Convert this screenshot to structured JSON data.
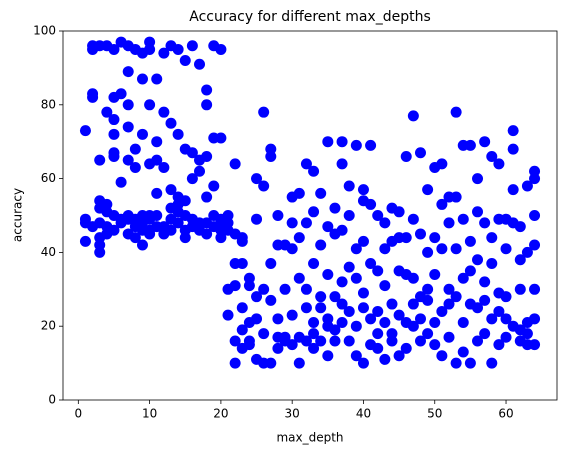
{
  "chart_data": {
    "type": "scatter",
    "title": "Accuracy for different max_depths",
    "x_label": "max_depth",
    "y_label": "accuracy",
    "color": "#0000ff",
    "xlim": [
      -2.15,
      67.15
    ],
    "ylim": [
      0,
      100
    ],
    "xticks": [
      0,
      10,
      20,
      30,
      40,
      50,
      60
    ],
    "yticks": [
      0,
      20,
      40,
      60,
      80,
      100
    ],
    "x": [
      1,
      1,
      1,
      1,
      2,
      2,
      2,
      2,
      2,
      3,
      3,
      3,
      3,
      3,
      3,
      3,
      3,
      4,
      4,
      4,
      4,
      4,
      4,
      5,
      5,
      5,
      5,
      5,
      5,
      5,
      5,
      6,
      6,
      6,
      6,
      6,
      7,
      7,
      7,
      7,
      7,
      7,
      7,
      7,
      8,
      8,
      8,
      8,
      8,
      8,
      9,
      9,
      9,
      9,
      9,
      9,
      9,
      10,
      10,
      10,
      10,
      10,
      10,
      10,
      10,
      11,
      11,
      11,
      11,
      11,
      11,
      12,
      12,
      12,
      12,
      12,
      13,
      13,
      13,
      13,
      13,
      13,
      14,
      14,
      14,
      14,
      14,
      14,
      15,
      15,
      15,
      15,
      15,
      15,
      16,
      16,
      16,
      16,
      16,
      17,
      17,
      17,
      17,
      17,
      18,
      18,
      18,
      18,
      18,
      18,
      19,
      19,
      19,
      19,
      19,
      20,
      20,
      20,
      20,
      20,
      20,
      21,
      21,
      21,
      21,
      21,
      22,
      22,
      22,
      22,
      22,
      22,
      23,
      23,
      23,
      23,
      23,
      23,
      24,
      24,
      24,
      24,
      24,
      25,
      25,
      25,
      25,
      25,
      26,
      26,
      26,
      26,
      26,
      27,
      27,
      27,
      27,
      27,
      28,
      28,
      28,
      28,
      28,
      29,
      29,
      29,
      29,
      30,
      30,
      30,
      30,
      30,
      31,
      31,
      31,
      31,
      31,
      32,
      32,
      32,
      32,
      32,
      33,
      33,
      33,
      33,
      33,
      33,
      34,
      34,
      34,
      34,
      34,
      35,
      35,
      35,
      35,
      35,
      35,
      36,
      36,
      36,
      36,
      36,
      37,
      37,
      37,
      37,
      37,
      37,
      38,
      38,
      38,
      38,
      38,
      39,
      39,
      39,
      39,
      39,
      40,
      40,
      40,
      40,
      40,
      40,
      41,
      41,
      41,
      41,
      41,
      42,
      42,
      42,
      42,
      42,
      43,
      43,
      43,
      43,
      43,
      44,
      44,
      44,
      44,
      44,
      45,
      45,
      45,
      45,
      45,
      46,
      46,
      46,
      46,
      46,
      47,
      47,
      47,
      47,
      47,
      48,
      48,
      48,
      48,
      48,
      49,
      49,
      49,
      49,
      49,
      50,
      50,
      50,
      50,
      50,
      51,
      51,
      51,
      51,
      51,
      52,
      52,
      52,
      52,
      52,
      53,
      53,
      53,
      53,
      53,
      54,
      54,
      54,
      54,
      54,
      55,
      55,
      55,
      55,
      55,
      56,
      56,
      56,
      56,
      56,
      57,
      57,
      57,
      57,
      57,
      58,
      58,
      58,
      58,
      58,
      59,
      59,
      59,
      59,
      59,
      60,
      60,
      60,
      60,
      60,
      61,
      61,
      61,
      61,
      61,
      62,
      62,
      62,
      62,
      62,
      63,
      63,
      63,
      63,
      63,
      64,
      64,
      64,
      64,
      64,
      64,
      64
    ],
    "values": [
      73,
      49,
      48,
      43,
      95,
      83,
      82,
      96,
      47,
      96,
      65,
      54,
      52,
      48,
      44,
      42,
      40,
      96,
      78,
      51,
      53,
      47,
      45,
      95,
      82,
      76,
      67,
      66,
      72,
      50,
      46,
      97,
      83,
      59,
      49,
      48,
      96,
      89,
      80,
      74,
      65,
      50,
      49,
      45,
      95,
      68,
      63,
      49,
      47,
      44,
      94,
      87,
      72,
      50,
      48,
      46,
      42,
      97,
      95,
      80,
      64,
      50,
      49,
      46,
      45,
      87,
      70,
      65,
      56,
      50,
      47,
      94,
      78,
      63,
      47,
      45,
      96,
      75,
      57,
      52,
      49,
      46,
      95,
      72,
      55,
      53,
      51,
      48,
      92,
      68,
      54,
      50,
      46,
      44,
      96,
      67,
      60,
      49,
      47,
      91,
      65,
      62,
      48,
      46,
      84,
      80,
      66,
      55,
      48,
      45,
      96,
      71,
      58,
      50,
      47,
      95,
      71,
      49,
      48,
      46,
      44,
      48,
      50,
      30,
      23,
      46,
      64,
      45,
      37,
      16,
      10,
      31,
      37,
      25,
      19,
      14,
      44,
      43,
      33,
      21,
      16,
      15,
      31,
      60,
      49,
      28,
      22,
      11,
      78,
      58,
      30,
      18,
      10,
      68,
      66,
      37,
      27,
      10,
      50,
      42,
      22,
      17,
      14,
      42,
      30,
      16,
      17,
      55,
      48,
      41,
      23,
      15,
      56,
      44,
      33,
      17,
      10,
      64,
      48,
      30,
      25,
      16,
      62,
      51,
      37,
      21,
      18,
      14,
      56,
      42,
      28,
      25,
      16,
      70,
      47,
      34,
      22,
      20,
      12,
      52,
      45,
      28,
      19,
      16,
      70,
      64,
      46,
      32,
      26,
      21,
      58,
      50,
      36,
      24,
      16,
      69,
      41,
      33,
      20,
      12,
      57,
      54,
      43,
      29,
      25,
      10,
      69,
      53,
      37,
      22,
      15,
      50,
      35,
      24,
      18,
      14,
      48,
      41,
      31,
      21,
      11,
      52,
      43,
      26,
      18,
      16,
      51,
      44,
      35,
      23,
      12,
      66,
      44,
      34,
      21,
      14,
      77,
      49,
      33,
      26,
      20,
      67,
      45,
      28,
      22,
      16,
      57,
      40,
      30,
      27,
      18,
      63,
      44,
      34,
      21,
      15,
      64,
      53,
      41,
      24,
      12,
      55,
      48,
      30,
      26,
      17,
      78,
      55,
      41,
      28,
      10,
      69,
      49,
      33,
      21,
      13,
      69,
      43,
      35,
      26,
      10,
      60,
      51,
      38,
      25,
      16,
      70,
      48,
      32,
      27,
      18,
      66,
      44,
      37,
      22,
      10,
      64,
      49,
      29,
      24,
      15,
      49,
      41,
      28,
      22,
      17,
      73,
      68,
      57,
      48,
      20,
      47,
      38,
      30,
      19,
      16,
      58,
      40,
      21,
      18,
      15,
      62,
      60,
      50,
      42,
      30,
      22,
      15
    ]
  }
}
